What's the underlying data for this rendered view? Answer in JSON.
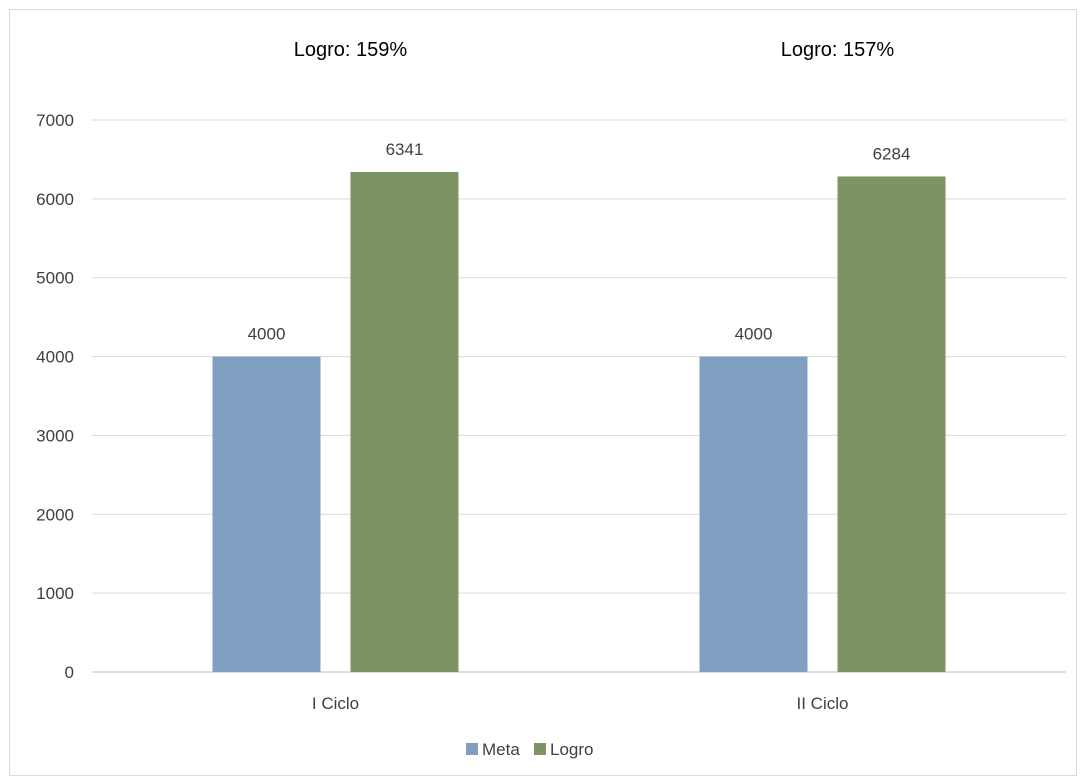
{
  "chart_data": {
    "type": "bar",
    "categories": [
      "I Ciclo",
      "II Ciclo"
    ],
    "series": [
      {
        "name": "Meta",
        "values": [
          4000,
          4000
        ],
        "color": "#809ec2"
      },
      {
        "name": "Logro",
        "values": [
          6341,
          6284
        ],
        "color": "#7e9363"
      }
    ],
    "annotations": [
      "Logro: 159%",
      "Logro: 157%"
    ],
    "ylim": [
      0,
      7000
    ],
    "yticks": [
      0,
      1000,
      2000,
      3000,
      4000,
      5000,
      6000,
      7000
    ],
    "grid": true,
    "legend": "bottom",
    "title": "",
    "xlabel": "",
    "ylabel": ""
  }
}
